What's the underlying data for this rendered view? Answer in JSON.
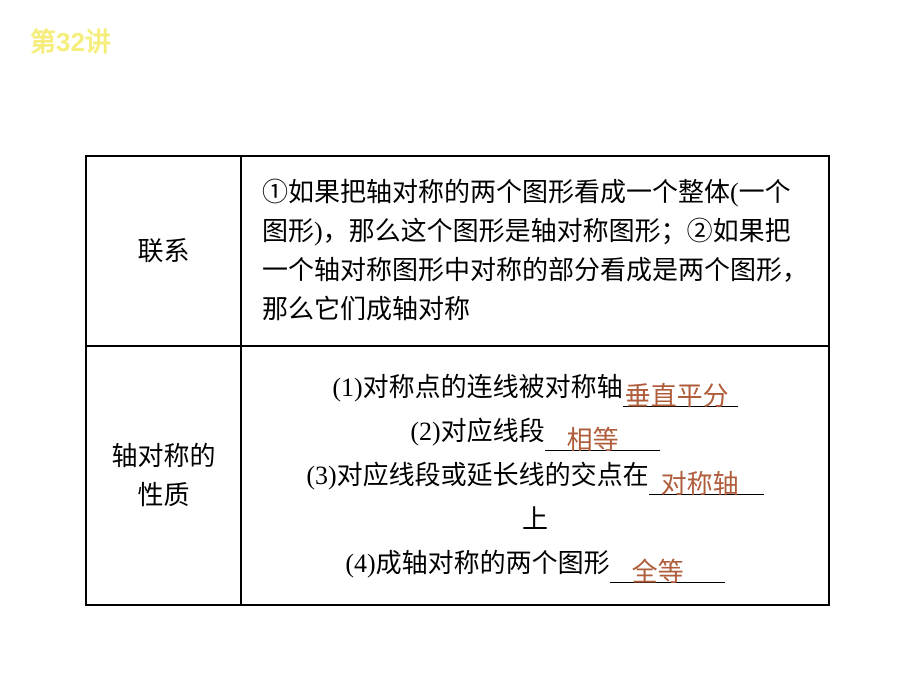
{
  "header": "第32讲",
  "table": {
    "rows": [
      {
        "label": "联系",
        "content": "①如果把轴对称的两个图形看成一个整体(一个图形)，那么这个图形是轴对称图形；②如果把一个轴对称图形中对称的部分看成是两个图形，那么它们成轴对称"
      },
      {
        "label": "轴对称的性质",
        "items": [
          {
            "prefix": "(1)对称点的连线被对称轴",
            "answer": "垂直平分",
            "suffix": ""
          },
          {
            "prefix": "(2)对应线段",
            "answer": "相等",
            "suffix": ""
          },
          {
            "prefix": "(3)对应线段或延长线的交点在",
            "answer": "对称轴",
            "suffix": "上"
          },
          {
            "prefix": "(4)成轴对称的两个图形",
            "answer": "全等",
            "suffix": ""
          }
        ]
      }
    ]
  },
  "colors": {
    "header_color": "#f5ee7c",
    "answer_color": "#b05d3c",
    "text_color": "#000000",
    "border_color": "#000000",
    "background": "#ffffff"
  }
}
